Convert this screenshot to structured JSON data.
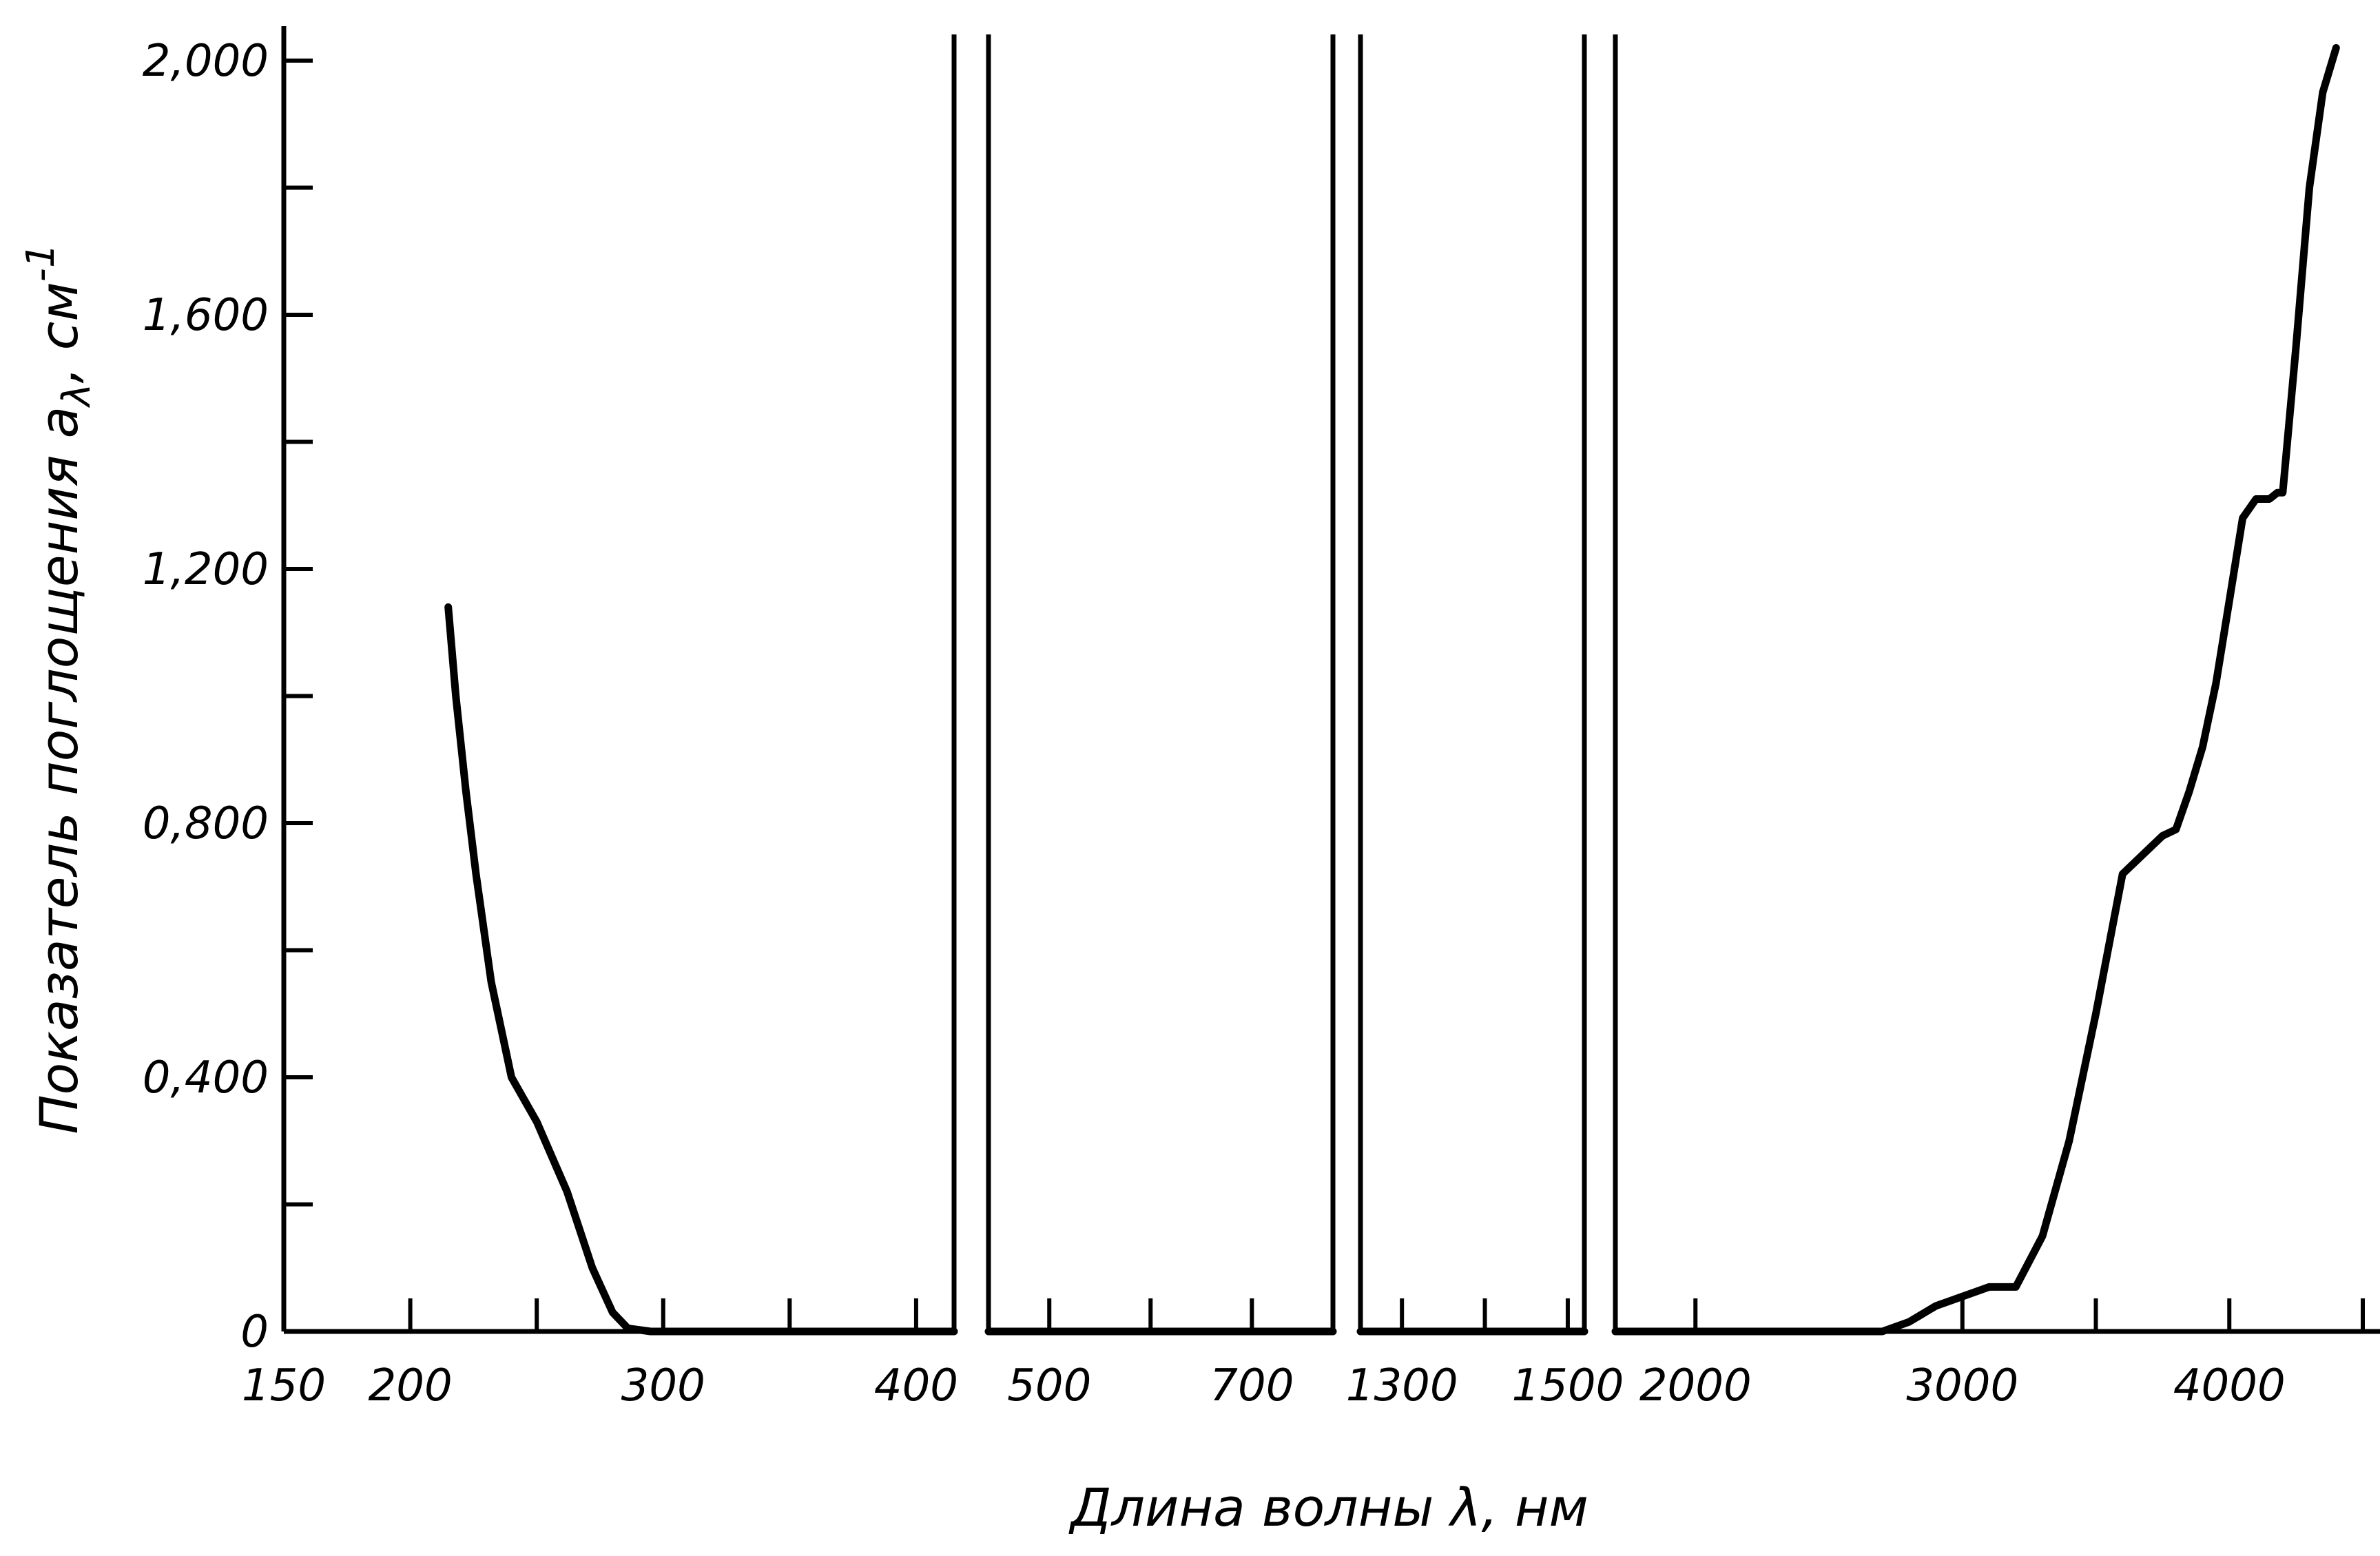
{
  "chart_data": {
    "type": "line",
    "title": "",
    "xlabel": "Длина волны λ, нм",
    "ylabel": "Показатель поглощения a",
    "ylabel_subscript": "λ",
    "ylabel_unit": ", см",
    "ylabel_unit_exp": "-1",
    "ylim": [
      0,
      2.0
    ],
    "y_ticks": [
      {
        "value": 0,
        "label": "0"
      },
      {
        "value": 0.4,
        "label": "0,400"
      },
      {
        "value": 0.8,
        "label": "0,800"
      },
      {
        "value": 1.2,
        "label": "1,200"
      },
      {
        "value": 1.6,
        "label": "1,600"
      },
      {
        "value": 2.0,
        "label": "2,000"
      }
    ],
    "y_minor_step": 0.2,
    "grid": false,
    "colors": {
      "line": "#000000",
      "axis": "#000000"
    },
    "x_segments": [
      {
        "range": [
          150,
          415
        ],
        "labels": [
          {
            "value": 150,
            "label": "150"
          },
          {
            "value": 200,
            "label": "200"
          },
          {
            "value": 300,
            "label": "300"
          },
          {
            "value": 400,
            "label": "400"
          }
        ],
        "ticks": [
          200,
          250,
          300,
          350,
          400
        ]
      },
      {
        "range": [
          440,
          780
        ],
        "labels": [
          {
            "value": 500,
            "label": "500"
          },
          {
            "value": 700,
            "label": "700"
          }
        ],
        "ticks": [
          500,
          600,
          700
        ]
      },
      {
        "range": [
          1250,
          1520
        ],
        "labels": [
          {
            "value": 1300,
            "label": "1300"
          },
          {
            "value": 1500,
            "label": "1500"
          }
        ],
        "ticks": [
          1300,
          1400,
          1500
        ]
      },
      {
        "range": [
          1700,
          4500
        ],
        "labels": [
          {
            "value": 2000,
            "label": "2000"
          },
          {
            "value": 3000,
            "label": "3000"
          },
          {
            "value": 4000,
            "label": "4000"
          }
        ],
        "ticks": [
          2000,
          3000,
          3500,
          4000,
          4500
        ]
      }
    ],
    "series": [
      {
        "segment": 0,
        "x": [
          215,
          218,
          222,
          226,
          232,
          240,
          250,
          262,
          272,
          280,
          286,
          295,
          330,
          415
        ],
        "y": [
          1.14,
          1.0,
          0.85,
          0.72,
          0.55,
          0.4,
          0.33,
          0.22,
          0.1,
          0.03,
          0.005,
          0,
          0,
          0
        ]
      },
      {
        "segment": 1,
        "x": [
          440,
          780
        ],
        "y": [
          0,
          0
        ]
      },
      {
        "segment": 2,
        "x": [
          1250,
          1520
        ],
        "y": [
          0,
          0
        ]
      },
      {
        "segment": 3,
        "x": [
          1700,
          2700,
          2800,
          2900,
          3100,
          3200,
          3300,
          3400,
          3500,
          3600,
          3700,
          3750,
          3800,
          3850,
          3900,
          3950,
          4000,
          4050,
          4100,
          4150,
          4180,
          4200,
          4250,
          4300,
          4350,
          4400
        ],
        "y": [
          0,
          0,
          0.015,
          0.04,
          0.07,
          0.07,
          0.15,
          0.3,
          0.5,
          0.72,
          0.76,
          0.78,
          0.79,
          0.85,
          0.92,
          1.02,
          1.15,
          1.28,
          1.31,
          1.31,
          1.32,
          1.32,
          1.55,
          1.8,
          1.95,
          2.02
        ]
      }
    ]
  }
}
